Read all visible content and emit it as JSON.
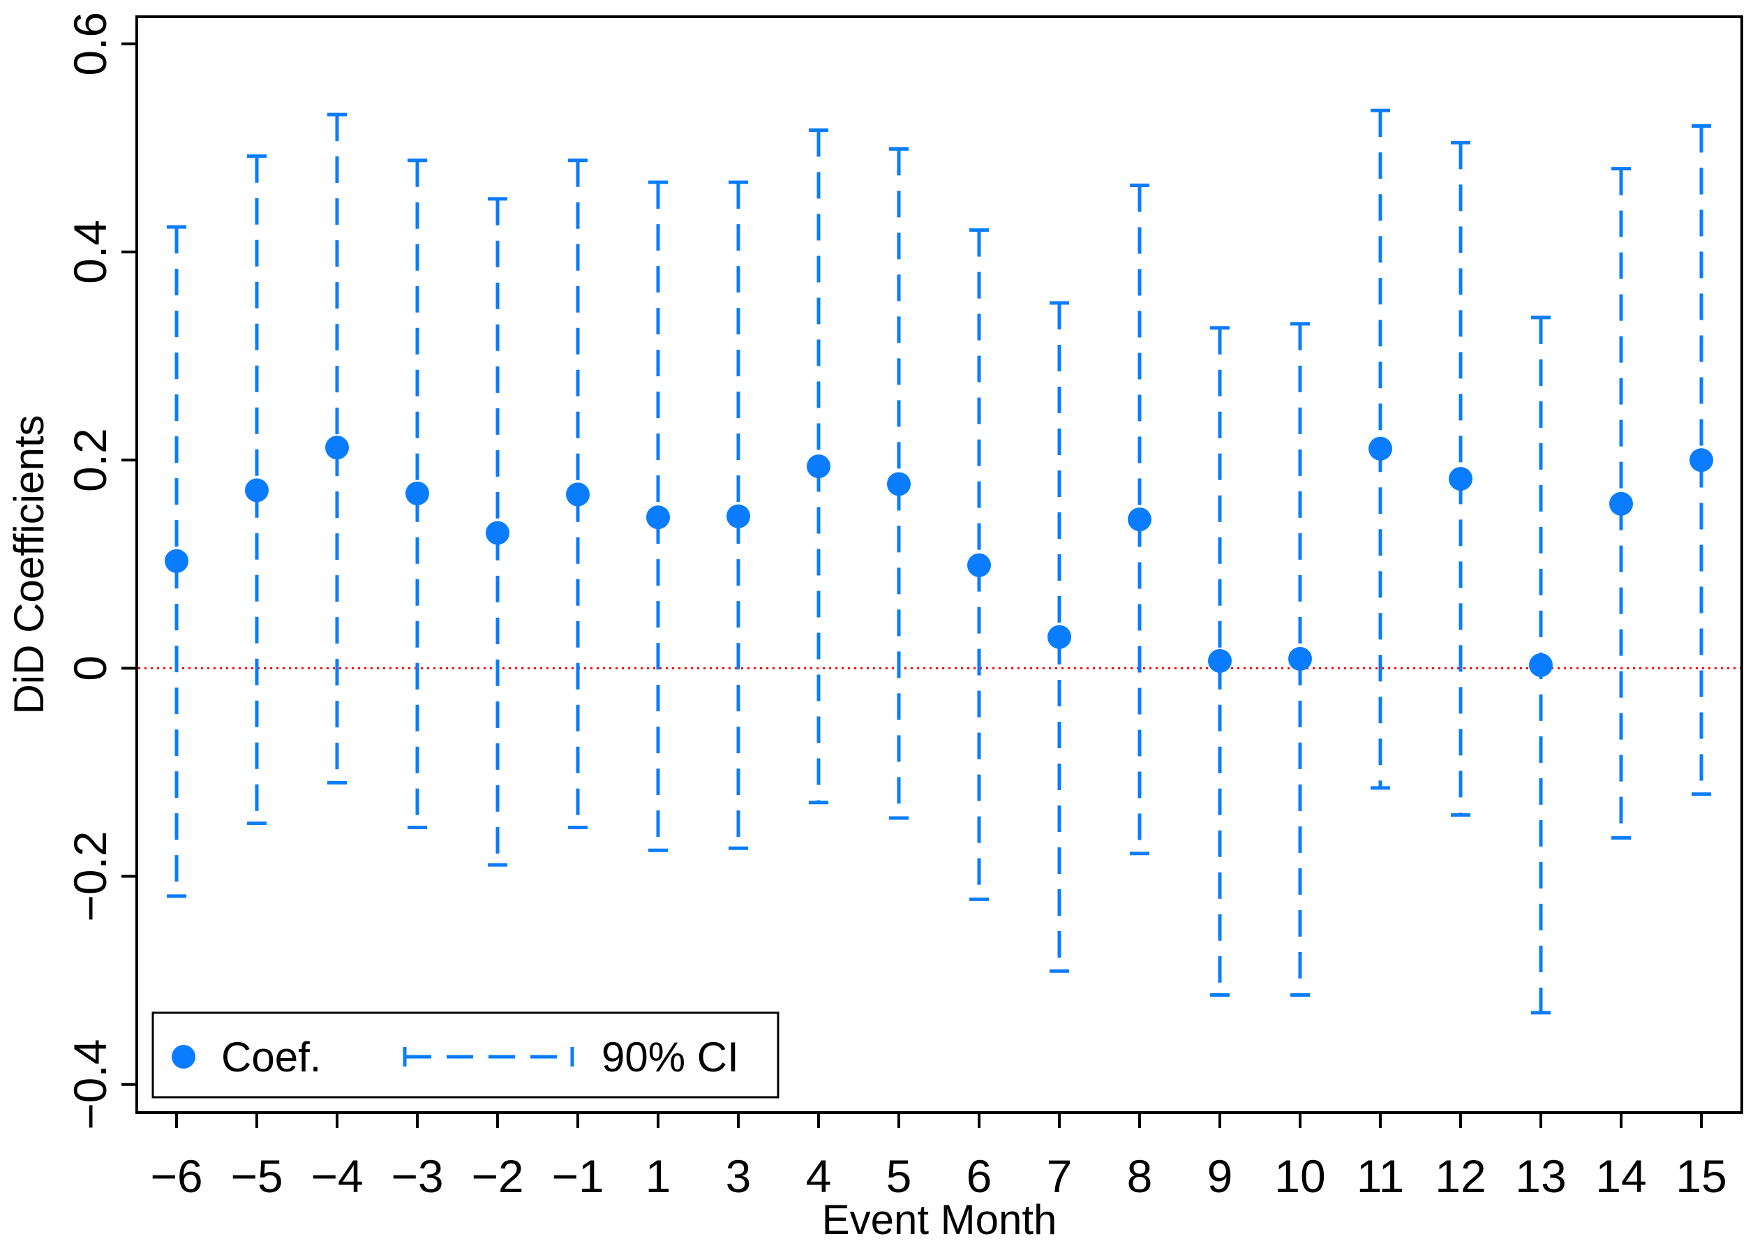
{
  "chart_data": {
    "type": "scatter",
    "xlabel": "Event Month",
    "ylabel": "DiD Coefficients",
    "ylim": [
      -0.427,
      0.626
    ],
    "y_ticks": [
      -0.4,
      -0.2,
      0,
      0.2,
      0.4,
      0.6
    ],
    "y_tick_labels": [
      "−0.4",
      "−0.2",
      "0",
      "0.2",
      "0.4",
      "0.6"
    ],
    "categories": [
      "−6",
      "−5",
      "−4",
      "−3",
      "−2",
      "−1",
      "1",
      "3",
      "4",
      "5",
      "6",
      "7",
      "8",
      "9",
      "10",
      "11",
      "12",
      "13",
      "14",
      "15"
    ],
    "series": [
      {
        "name": "Coef.",
        "values": [
          0.103,
          0.171,
          0.212,
          0.168,
          0.13,
          0.167,
          0.145,
          0.146,
          0.194,
          0.177,
          0.099,
          0.03,
          0.143,
          0.007,
          0.009,
          0.211,
          0.182,
          0.003,
          0.158,
          0.2
        ]
      },
      {
        "name": "90% CI",
        "lower": [
          -0.219,
          -0.149,
          -0.11,
          -0.153,
          -0.189,
          -0.153,
          -0.175,
          -0.173,
          -0.129,
          -0.144,
          -0.222,
          -0.291,
          -0.178,
          -0.314,
          -0.314,
          -0.115,
          -0.141,
          -0.331,
          -0.163,
          -0.121
        ],
        "upper": [
          0.424,
          0.492,
          0.532,
          0.488,
          0.451,
          0.488,
          0.467,
          0.467,
          0.517,
          0.499,
          0.421,
          0.351,
          0.464,
          0.327,
          0.331,
          0.536,
          0.505,
          0.337,
          0.48,
          0.521
        ]
      }
    ],
    "reference_line": {
      "y": 0,
      "style": "dotted",
      "color": "#ff0000"
    },
    "grid": false,
    "legend_position": "bottom-left",
    "colors": {
      "coef": "#0a7cff",
      "ci": "#0a7cff",
      "zero_line": "#ff0000",
      "axis": "#000000"
    }
  }
}
